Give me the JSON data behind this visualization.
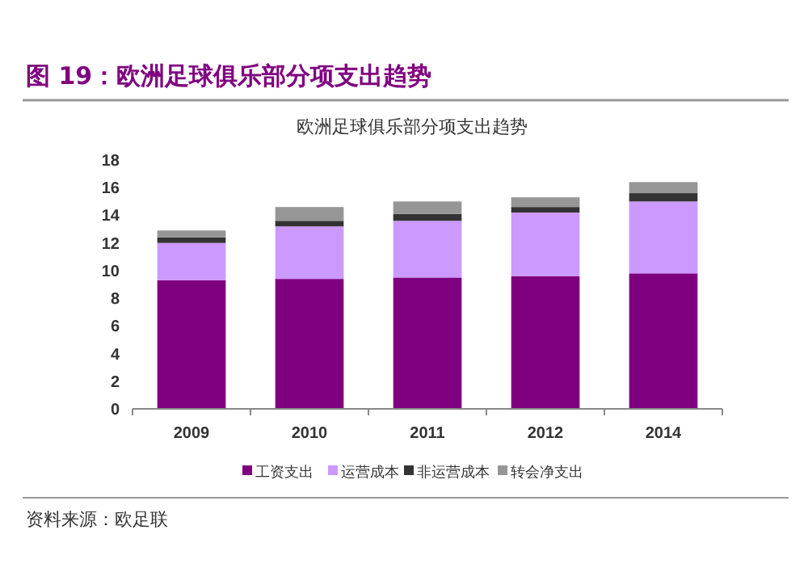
{
  "chart_data": {
    "type": "bar",
    "title": "图 19：欧洲足球俱乐部分项支出趋势",
    "subtitle": "欧洲足球俱乐部分项支出趋势",
    "annotations": [
      "资料来源：欧足联"
    ],
    "categories": [
      "2009",
      "2010",
      "2011",
      "2012",
      "2014"
    ],
    "stacked": true,
    "series": [
      {
        "name": "工资支出",
        "color": "#7f007f",
        "values": [
          9.3,
          9.4,
          9.5,
          9.6,
          9.8
        ]
      },
      {
        "name": "运营成本",
        "color": "#cc99ff",
        "values": [
          2.7,
          3.8,
          4.1,
          4.6,
          5.2
        ]
      },
      {
        "name": "非运营成本",
        "color": "#333333",
        "values": [
          0.4,
          0.4,
          0.5,
          0.4,
          0.6
        ]
      },
      {
        "name": "转会净支出",
        "color": "#969696",
        "values": [
          0.5,
          1.0,
          0.9,
          0.7,
          0.8
        ]
      }
    ],
    "ylim": [
      0,
      18
    ],
    "yticks": [
      0,
      2,
      4,
      6,
      8,
      10,
      12,
      14,
      16,
      18
    ],
    "grid": false,
    "legend": "bottom"
  }
}
